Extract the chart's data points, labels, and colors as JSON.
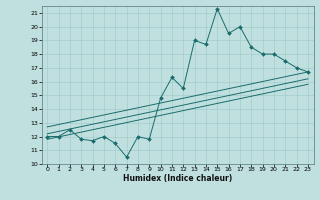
{
  "title": "",
  "xlabel": "Humidex (Indice chaleur)",
  "bg_color": "#c0e0e0",
  "line_color": "#1a6b6b",
  "grid_color": "#9dc8c8",
  "xlim": [
    -0.5,
    23.5
  ],
  "ylim": [
    10,
    21.5
  ],
  "xticks": [
    0,
    1,
    2,
    3,
    4,
    5,
    6,
    7,
    8,
    9,
    10,
    11,
    12,
    13,
    14,
    15,
    16,
    17,
    18,
    19,
    20,
    21,
    22,
    23
  ],
  "yticks": [
    10,
    11,
    12,
    13,
    14,
    15,
    16,
    17,
    18,
    19,
    20,
    21
  ],
  "main_x": [
    0,
    1,
    2,
    3,
    4,
    5,
    6,
    7,
    8,
    9,
    10,
    11,
    12,
    13,
    14,
    15,
    16,
    17,
    18,
    19,
    20,
    21,
    22,
    23
  ],
  "main_y": [
    12,
    12,
    12.5,
    11.8,
    11.7,
    12,
    11.5,
    10.5,
    12,
    11.8,
    14.8,
    16.3,
    15.5,
    19,
    18.7,
    21.3,
    19.5,
    20,
    18.5,
    18,
    18,
    17.5,
    17,
    16.7
  ],
  "trend1_x": [
    0,
    23
  ],
  "trend1_y": [
    12.2,
    16.2
  ],
  "trend2_x": [
    0,
    23
  ],
  "trend2_y": [
    12.7,
    16.7
  ],
  "trend3_x": [
    0,
    23
  ],
  "trend3_y": [
    11.8,
    15.8
  ]
}
